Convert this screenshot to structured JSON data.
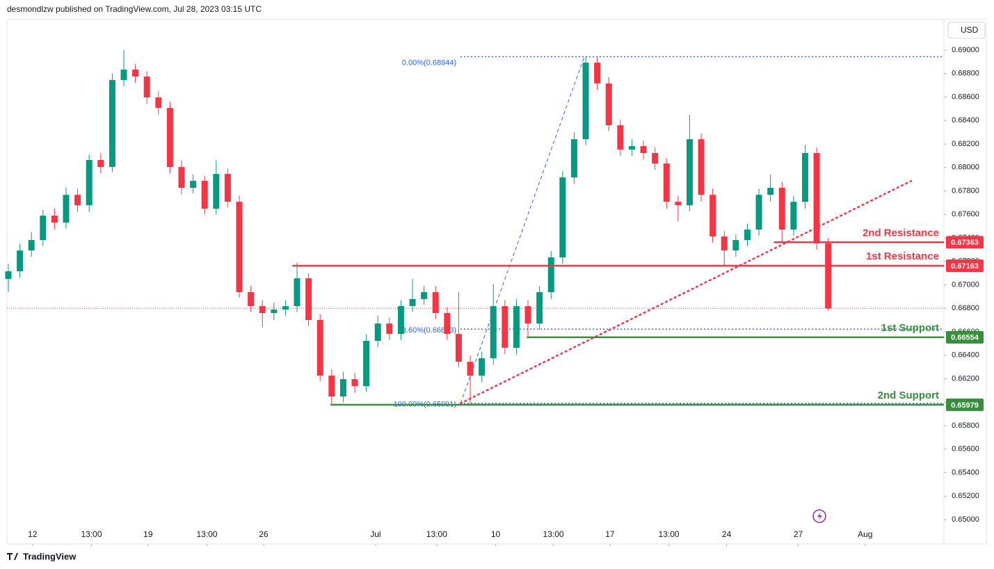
{
  "header": {
    "published": "desmondlzw published on TradingView.com, Jul 28, 2023 03:15 UTC",
    "currency": "USD",
    "brand": "TradingView"
  },
  "chart_data": {
    "type": "candlestick",
    "up_color": "#089981",
    "down_color": "#f23645",
    "xlim": [
      -0.12,
      81.02
    ],
    "ylim": [
      0.64793,
      0.69261
    ],
    "xticks": [
      {
        "value": 2.1,
        "label": "12"
      },
      {
        "value": 7.2,
        "label": "13:00"
      },
      {
        "value": 12.1,
        "label": "19"
      },
      {
        "value": 17.2,
        "label": "13:00"
      },
      {
        "value": 22.1,
        "label": "26"
      },
      {
        "value": 31.8,
        "label": "Jul"
      },
      {
        "value": 37.1,
        "label": "13:00"
      },
      {
        "value": 42.2,
        "label": "10"
      },
      {
        "value": 47.2,
        "label": "13:00"
      },
      {
        "value": 52.1,
        "label": "17"
      },
      {
        "value": 57.2,
        "label": "13:00"
      },
      {
        "value": 62.2,
        "label": "24"
      },
      {
        "value": 68.4,
        "label": "27"
      },
      {
        "value": 74.2,
        "label": "Aug"
      }
    ],
    "yticks": [
      {
        "value": 0.65,
        "label": "0.65000"
      },
      {
        "value": 0.652,
        "label": "0.65200"
      },
      {
        "value": 0.654,
        "label": "0.65400"
      },
      {
        "value": 0.656,
        "label": "0.65600"
      },
      {
        "value": 0.658,
        "label": "0.65800"
      },
      {
        "value": 0.66,
        "label": "0.66000"
      },
      {
        "value": 0.662,
        "label": "0.66200"
      },
      {
        "value": 0.664,
        "label": "0.66400"
      },
      {
        "value": 0.666,
        "label": "0.66600"
      },
      {
        "value": 0.668,
        "label": "0.66800"
      },
      {
        "value": 0.67,
        "label": "0.67000"
      },
      {
        "value": 0.672,
        "label": "0.67200"
      },
      {
        "value": 0.674,
        "label": "0.67400"
      },
      {
        "value": 0.676,
        "label": "0.67600"
      },
      {
        "value": 0.678,
        "label": "0.67800"
      },
      {
        "value": 0.68,
        "label": "0.68000"
      },
      {
        "value": 0.682,
        "label": "0.68200"
      },
      {
        "value": 0.684,
        "label": "0.68400"
      },
      {
        "value": 0.686,
        "label": "0.68600"
      },
      {
        "value": 0.688,
        "label": "0.68800"
      },
      {
        "value": 0.69,
        "label": "0.69000"
      }
    ],
    "ohlc": [
      [
        0.6705,
        0.6718,
        0.6694,
        0.67116
      ],
      [
        0.67116,
        0.6735,
        0.6706,
        0.67293
      ],
      [
        0.67293,
        0.6745,
        0.6724,
        0.67382
      ],
      [
        0.67382,
        0.6764,
        0.6733,
        0.6759
      ],
      [
        0.6759,
        0.6765,
        0.6747,
        0.6753
      ],
      [
        0.6753,
        0.6783,
        0.6748,
        0.67767
      ],
      [
        0.67767,
        0.6782,
        0.6762,
        0.67679
      ],
      [
        0.67679,
        0.6811,
        0.6762,
        0.68064
      ],
      [
        0.68064,
        0.6812,
        0.6795,
        0.68004
      ],
      [
        0.68004,
        0.688,
        0.6796,
        0.68745
      ],
      [
        0.68745,
        0.69,
        0.6869,
        0.68834
      ],
      [
        0.68834,
        0.6888,
        0.6872,
        0.68775
      ],
      [
        0.68775,
        0.6882,
        0.6854,
        0.68597
      ],
      [
        0.68597,
        0.6865,
        0.6845,
        0.68508
      ],
      [
        0.68508,
        0.6856,
        0.6795,
        0.68004
      ],
      [
        0.68004,
        0.6806,
        0.6777,
        0.67827
      ],
      [
        0.67827,
        0.6794,
        0.6778,
        0.67886
      ],
      [
        0.67886,
        0.6793,
        0.676,
        0.67649
      ],
      [
        0.67649,
        0.6806,
        0.676,
        0.67945
      ],
      [
        0.67945,
        0.6799,
        0.6766,
        0.67708
      ],
      [
        0.67708,
        0.6776,
        0.6689,
        0.66938
      ],
      [
        0.66938,
        0.6699,
        0.6677,
        0.66819
      ],
      [
        0.66819,
        0.6687,
        0.6664,
        0.6676
      ],
      [
        0.6676,
        0.6685,
        0.667,
        0.6679
      ],
      [
        0.6679,
        0.6687,
        0.6674,
        0.66819
      ],
      [
        0.66819,
        0.6719,
        0.6677,
        0.67056
      ],
      [
        0.67056,
        0.671,
        0.6665,
        0.66701
      ],
      [
        0.66701,
        0.6675,
        0.6618,
        0.66227
      ],
      [
        0.66227,
        0.6628,
        0.65979,
        0.66049
      ],
      [
        0.66049,
        0.6626,
        0.66,
        0.66197
      ],
      [
        0.66197,
        0.6625,
        0.6608,
        0.66138
      ],
      [
        0.66138,
        0.6658,
        0.6609,
        0.66523
      ],
      [
        0.66523,
        0.6674,
        0.6647,
        0.66671
      ],
      [
        0.66671,
        0.6672,
        0.6653,
        0.66582
      ],
      [
        0.66582,
        0.6687,
        0.6653,
        0.66819
      ],
      [
        0.66819,
        0.6705,
        0.6677,
        0.66879
      ],
      [
        0.66879,
        0.6699,
        0.6683,
        0.66938
      ],
      [
        0.66938,
        0.6699,
        0.6671,
        0.6676
      ],
      [
        0.6676,
        0.6681,
        0.6653,
        0.66582
      ],
      [
        0.66582,
        0.6694,
        0.663,
        0.66345
      ],
      [
        0.66345,
        0.664,
        0.65991,
        0.66227
      ],
      [
        0.66227,
        0.6643,
        0.6617,
        0.66375
      ],
      [
        0.66375,
        0.67009,
        0.6632,
        0.66819
      ],
      [
        0.66819,
        0.6687,
        0.6641,
        0.66464
      ],
      [
        0.66464,
        0.6688,
        0.6641,
        0.66819
      ],
      [
        0.66819,
        0.6687,
        0.66554,
        0.66671
      ],
      [
        0.66671,
        0.6699,
        0.6662,
        0.66938
      ],
      [
        0.66938,
        0.6729,
        0.6688,
        0.67234
      ],
      [
        0.67234,
        0.6797,
        0.6718,
        0.67916
      ],
      [
        0.67916,
        0.683,
        0.6786,
        0.68241
      ],
      [
        0.68241,
        0.68944,
        0.6819,
        0.68893
      ],
      [
        0.68893,
        0.6894,
        0.6866,
        0.68716
      ],
      [
        0.68716,
        0.6877,
        0.6831,
        0.6836
      ],
      [
        0.6836,
        0.6841,
        0.681,
        0.68153
      ],
      [
        0.68153,
        0.6824,
        0.681,
        0.68182
      ],
      [
        0.68182,
        0.6823,
        0.6807,
        0.68123
      ],
      [
        0.68123,
        0.6817,
        0.6798,
        0.68034
      ],
      [
        0.68034,
        0.6808,
        0.6765,
        0.67708
      ],
      [
        0.67708,
        0.6776,
        0.6754,
        0.67679
      ],
      [
        0.67679,
        0.68449,
        0.6763,
        0.68241
      ],
      [
        0.68241,
        0.6829,
        0.6771,
        0.67767
      ],
      [
        0.67767,
        0.6782,
        0.6736,
        0.67412
      ],
      [
        0.67412,
        0.6746,
        0.67163,
        0.67293
      ],
      [
        0.67293,
        0.6743,
        0.6724,
        0.67382
      ],
      [
        0.67382,
        0.6752,
        0.6733,
        0.67471
      ],
      [
        0.67471,
        0.6782,
        0.6742,
        0.67767
      ],
      [
        0.67767,
        0.6794,
        0.6771,
        0.67827
      ],
      [
        0.67827,
        0.6788,
        0.67363,
        0.67471
      ],
      [
        0.67471,
        0.6776,
        0.6742,
        0.67708
      ],
      [
        0.67708,
        0.68194,
        0.6765,
        0.68123
      ],
      [
        0.68123,
        0.6817,
        0.673,
        0.67353
      ],
      [
        0.67353,
        0.674,
        0.6678,
        0.668
      ]
    ],
    "levels": [
      {
        "name": "2nd Resistance",
        "value": 0.67363,
        "color": "#f23645",
        "start": 66.3
      },
      {
        "name": "1st Resistance",
        "value": 0.67163,
        "color": "#f23645",
        "start": 24.6
      },
      {
        "name": "1st Support",
        "value": 0.66554,
        "color": "#388e3c",
        "start": 44.9
      },
      {
        "name": "2nd Support",
        "value": 0.65979,
        "color": "#388e3c",
        "start": 27.9
      }
    ],
    "fib": {
      "color": "#2962ff",
      "anchors": [
        [
          39.16,
          0.65991
        ],
        [
          49.88,
          0.68944
        ]
      ],
      "levels": [
        {
          "label": "0.00%(0.68944)",
          "value": 0.68944
        },
        {
          "label": "78.60%(0.66623)",
          "value": 0.66623
        },
        {
          "label": "100.00%(0.65991)",
          "value": 0.65991
        }
      ]
    },
    "trendline": {
      "color": "#f23645",
      "points": [
        [
          39.16,
          0.65991
        ],
        [
          78.19,
          0.67886
        ]
      ]
    }
  }
}
